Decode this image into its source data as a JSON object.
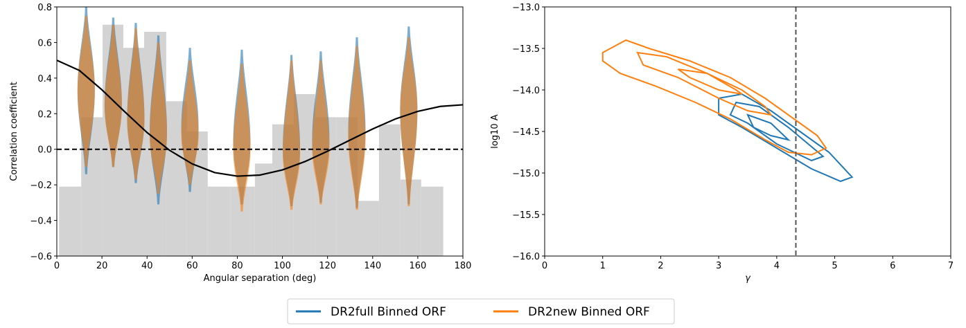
{
  "chart_data": [
    {
      "type": "violin",
      "xlabel": "Angular separation (deg)",
      "ylabel": "Correlation coefficient",
      "xlim": [
        0,
        180
      ],
      "ylim": [
        -0.6,
        0.8
      ],
      "xticks": [
        0,
        20,
        40,
        60,
        80,
        100,
        120,
        140,
        160,
        180
      ],
      "yticks": [
        {
          "value": -0.6,
          "label": "−0.6"
        },
        {
          "value": -0.4,
          "label": "−0.4"
        },
        {
          "value": -0.2,
          "label": "−0.2"
        },
        {
          "value": 0,
          "label": "0.0"
        },
        0.2,
        0.4,
        0.6,
        0.8
      ],
      "hline": 0,
      "histogram": {
        "color": "#d3d3d3",
        "bins": [
          1,
          10.8,
          20.3,
          29.5,
          38.7,
          48.5,
          57.7,
          66.9,
          77,
          87.8,
          95.5,
          105,
          114.5,
          124,
          133.3,
          142.8,
          152.3,
          161.5,
          171.3
        ],
        "values": [
          -0.21,
          0.18,
          0.7,
          0.57,
          0.66,
          0.27,
          0.1,
          -0.21,
          -0.21,
          -0.08,
          0.14,
          0.31,
          0.18,
          0.18,
          -0.29,
          0.14,
          -0.17,
          -0.21
        ]
      },
      "curve": {
        "color": "#000000",
        "x": [
          0,
          10,
          20,
          30,
          40,
          50,
          60,
          70,
          80,
          90,
          100,
          110,
          120,
          130,
          140,
          150,
          160,
          170,
          180
        ],
        "y": [
          0.5,
          0.443,
          0.334,
          0.212,
          0.094,
          -0.006,
          -0.082,
          -0.131,
          -0.151,
          -0.145,
          -0.116,
          -0.069,
          -0.011,
          0.052,
          0.114,
          0.17,
          0.213,
          0.241,
          0.25
        ]
      },
      "series": [
        {
          "name": "DR2full Binned ORF",
          "color": "#1f77b4",
          "positions": [
            13,
            25,
            35,
            45,
            59,
            82,
            104,
            117,
            133,
            156
          ],
          "min": [
            -0.14,
            -0.1,
            -0.19,
            -0.31,
            -0.24,
            -0.31,
            -0.32,
            -0.3,
            -0.33,
            -0.31
          ],
          "max": [
            0.8,
            0.74,
            0.71,
            0.64,
            0.57,
            0.56,
            0.53,
            0.55,
            0.63,
            0.69
          ],
          "mean": [
            0.33,
            0.25,
            0.17,
            0.1,
            0.12,
            0.03,
            0.0,
            0.05,
            0.1,
            0.22
          ]
        },
        {
          "name": "DR2new Binned ORF",
          "color": "#ff7f0e",
          "positions": [
            13,
            25,
            35,
            45,
            59,
            82,
            104,
            117,
            133,
            156
          ],
          "min": [
            -0.1,
            -0.1,
            -0.17,
            -0.25,
            -0.2,
            -0.35,
            -0.34,
            -0.31,
            -0.34,
            -0.32
          ],
          "max": [
            0.75,
            0.7,
            0.68,
            0.6,
            0.5,
            0.48,
            0.5,
            0.5,
            0.58,
            0.63
          ],
          "mean": [
            0.33,
            0.24,
            0.16,
            0.08,
            0.08,
            0.0,
            -0.03,
            0.0,
            0.06,
            0.22
          ]
        }
      ]
    },
    {
      "type": "contour",
      "xlabel": "γ",
      "ylabel": "log10 A",
      "xlim": [
        0,
        7
      ],
      "ylim": [
        -16,
        -13
      ],
      "xticks": [
        0,
        1,
        2,
        3,
        4,
        5,
        6,
        7
      ],
      "yticks": [
        {
          "value": -16,
          "label": "−16.0"
        },
        {
          "value": -15.5,
          "label": "−15.5"
        },
        {
          "value": -15,
          "label": "−15.0"
        },
        {
          "value": -14.5,
          "label": "−14.5"
        },
        {
          "value": -14,
          "label": "−14.0"
        },
        {
          "value": -13.5,
          "label": "−13.5"
        },
        {
          "value": -13,
          "label": "−13.0"
        }
      ],
      "vline": 4.33,
      "series": [
        {
          "name": "DR2full Binned ORF",
          "color": "#1f77b4",
          "contours": [
            [
              [
                3.0,
                -14.1
              ],
              [
                3.4,
                -14.05
              ],
              [
                3.9,
                -14.25
              ],
              [
                4.4,
                -14.5
              ],
              [
                4.9,
                -14.75
              ],
              [
                5.3,
                -15.05
              ],
              [
                5.1,
                -15.1
              ],
              [
                4.6,
                -14.95
              ],
              [
                4.0,
                -14.7
              ],
              [
                3.4,
                -14.45
              ],
              [
                3.0,
                -14.3
              ]
            ],
            [
              [
                3.3,
                -14.15
              ],
              [
                3.7,
                -14.2
              ],
              [
                4.2,
                -14.45
              ],
              [
                4.8,
                -14.8
              ],
              [
                4.6,
                -14.85
              ],
              [
                4.0,
                -14.65
              ],
              [
                3.5,
                -14.4
              ],
              [
                3.2,
                -14.3
              ]
            ],
            [
              [
                3.5,
                -14.3
              ],
              [
                3.9,
                -14.4
              ],
              [
                4.2,
                -14.6
              ],
              [
                3.9,
                -14.55
              ],
              [
                3.6,
                -14.45
              ]
            ]
          ]
        },
        {
          "name": "DR2new Binned ORF",
          "color": "#ff7f0e",
          "contours": [
            [
              [
                1.0,
                -13.55
              ],
              [
                1.4,
                -13.4
              ],
              [
                1.8,
                -13.5
              ],
              [
                2.5,
                -13.65
              ],
              [
                3.2,
                -13.85
              ],
              [
                3.8,
                -14.1
              ],
              [
                4.3,
                -14.35
              ],
              [
                4.7,
                -14.55
              ],
              [
                4.85,
                -14.7
              ],
              [
                4.6,
                -14.78
              ],
              [
                4.2,
                -14.75
              ],
              [
                3.8,
                -14.6
              ],
              [
                3.2,
                -14.35
              ],
              [
                2.6,
                -14.15
              ],
              [
                1.9,
                -13.95
              ],
              [
                1.3,
                -13.8
              ],
              [
                1.0,
                -13.65
              ]
            ],
            [
              [
                1.6,
                -13.55
              ],
              [
                2.1,
                -13.6
              ],
              [
                2.8,
                -13.8
              ],
              [
                3.4,
                -14.0
              ],
              [
                3.8,
                -14.2
              ],
              [
                3.9,
                -14.3
              ],
              [
                3.5,
                -14.25
              ],
              [
                3.0,
                -14.1
              ],
              [
                2.3,
                -13.85
              ],
              [
                1.7,
                -13.7
              ]
            ],
            [
              [
                2.3,
                -13.75
              ],
              [
                2.8,
                -13.8
              ],
              [
                3.3,
                -14.0
              ],
              [
                3.4,
                -14.05
              ],
              [
                3.0,
                -14.0
              ],
              [
                2.5,
                -13.85
              ]
            ]
          ]
        }
      ]
    }
  ]
}
